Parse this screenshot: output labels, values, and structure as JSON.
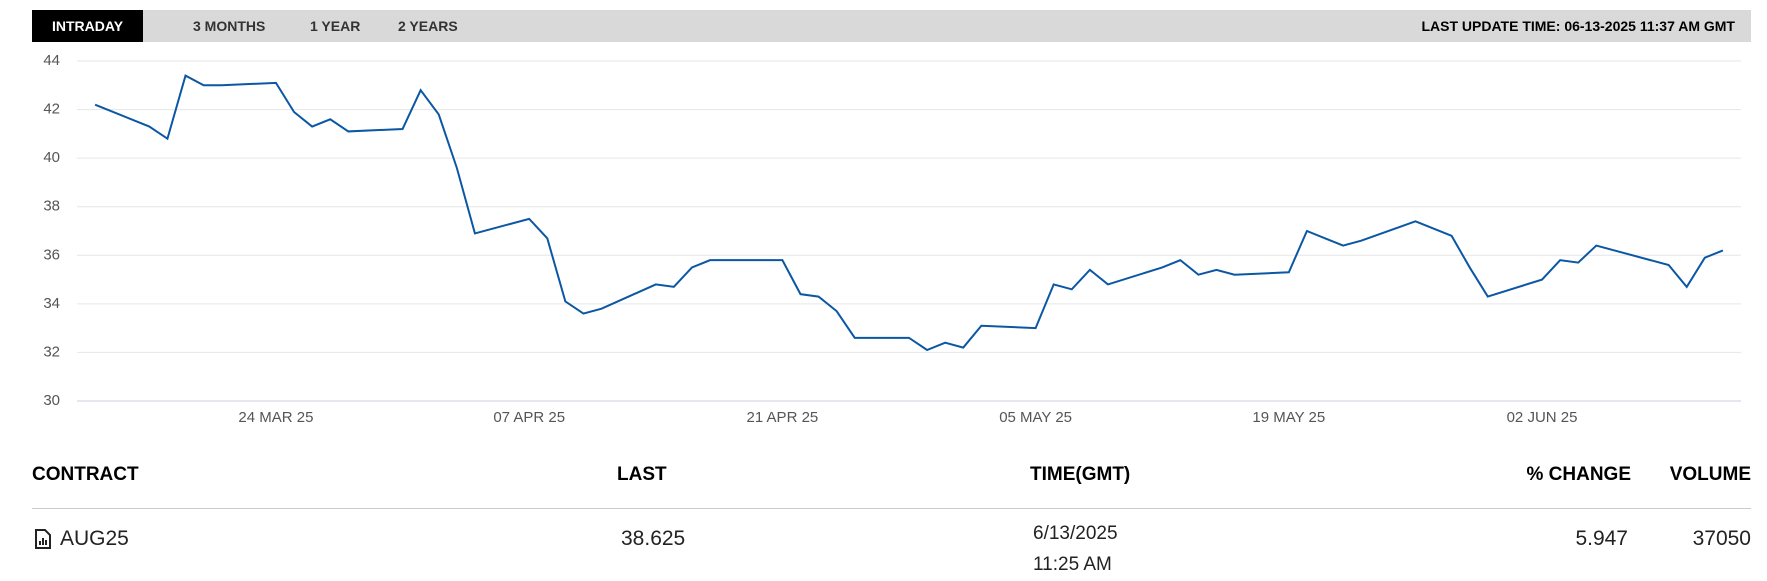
{
  "tabs": [
    "INTRADAY",
    "3 MONTHS",
    "1 YEAR",
    "2 YEARS"
  ],
  "active_tab": 0,
  "last_update": "LAST UPDATE TIME: 06-13-2025 11:37 AM GMT",
  "chart_data": {
    "type": "line",
    "x": [
      "2025-03-14",
      "2025-03-17",
      "2025-03-18",
      "2025-03-19",
      "2025-03-20",
      "2025-03-21",
      "2025-03-24",
      "2025-03-25",
      "2025-03-26",
      "2025-03-27",
      "2025-03-28",
      "2025-03-31",
      "2025-04-01",
      "2025-04-02",
      "2025-04-03",
      "2025-04-04",
      "2025-04-07",
      "2025-04-08",
      "2025-04-09",
      "2025-04-10",
      "2025-04-11",
      "2025-04-14",
      "2025-04-15",
      "2025-04-16",
      "2025-04-17",
      "2025-04-21",
      "2025-04-22",
      "2025-04-23",
      "2025-04-24",
      "2025-04-25",
      "2025-04-28",
      "2025-04-29",
      "2025-04-30",
      "2025-05-01",
      "2025-05-02",
      "2025-05-05",
      "2025-05-06",
      "2025-05-07",
      "2025-05-08",
      "2025-05-09",
      "2025-05-12",
      "2025-05-13",
      "2025-05-14",
      "2025-05-15",
      "2025-05-16",
      "2025-05-19",
      "2025-05-20",
      "2025-05-21",
      "2025-05-22",
      "2025-05-23",
      "2025-05-26",
      "2025-05-28",
      "2025-05-29",
      "2025-05-30",
      "2025-06-02",
      "2025-06-03",
      "2025-06-04",
      "2025-06-05",
      "2025-06-06",
      "2025-06-09",
      "2025-06-10",
      "2025-06-11",
      "2025-06-12"
    ],
    "series": [
      {
        "color": "#0b57a4",
        "values": [
          42.2,
          41.3,
          40.8,
          43.4,
          43.0,
          43.0,
          43.1,
          41.9,
          41.3,
          41.6,
          41.1,
          41.2,
          42.8,
          41.8,
          39.6,
          36.9,
          37.5,
          36.7,
          34.1,
          33.6,
          33.8,
          34.8,
          34.7,
          35.5,
          35.8,
          35.8,
          34.4,
          34.3,
          33.7,
          32.6,
          32.6,
          32.1,
          32.4,
          32.2,
          33.1,
          33.0,
          34.8,
          34.6,
          35.4,
          34.8,
          35.5,
          35.8,
          35.2,
          35.4,
          35.2,
          35.3,
          37.0,
          36.7,
          36.4,
          36.6,
          37.4,
          36.8,
          35.5,
          34.3,
          35.0,
          35.8,
          35.7,
          36.4,
          36.2,
          35.6,
          34.7,
          35.9,
          36.2
        ]
      }
    ],
    "xlim": [
      "2025-03-13",
      "2025-06-13"
    ],
    "xticks": [
      {
        "value": "2025-03-24",
        "label": "24 MAR 25"
      },
      {
        "value": "2025-04-07",
        "label": "07 APR 25"
      },
      {
        "value": "2025-04-21",
        "label": "21 APR 25"
      },
      {
        "value": "2025-05-05",
        "label": "05 MAY 25"
      },
      {
        "value": "2025-05-19",
        "label": "19 MAY 25"
      },
      {
        "value": "2025-06-02",
        "label": "02 JUN 25"
      }
    ],
    "ylim": [
      30,
      44
    ],
    "yticks": [
      30,
      32,
      34,
      36,
      38,
      40,
      42,
      44
    ],
    "grid": true
  },
  "table": {
    "headers": [
      "CONTRACT",
      "LAST",
      "TIME(GMT)",
      "% CHANGE",
      "VOLUME"
    ],
    "rows": [
      [
        "AUG25",
        38.625,
        [
          "6/13/2025",
          "11:25 AM"
        ],
        5.947,
        37050
      ]
    ]
  }
}
